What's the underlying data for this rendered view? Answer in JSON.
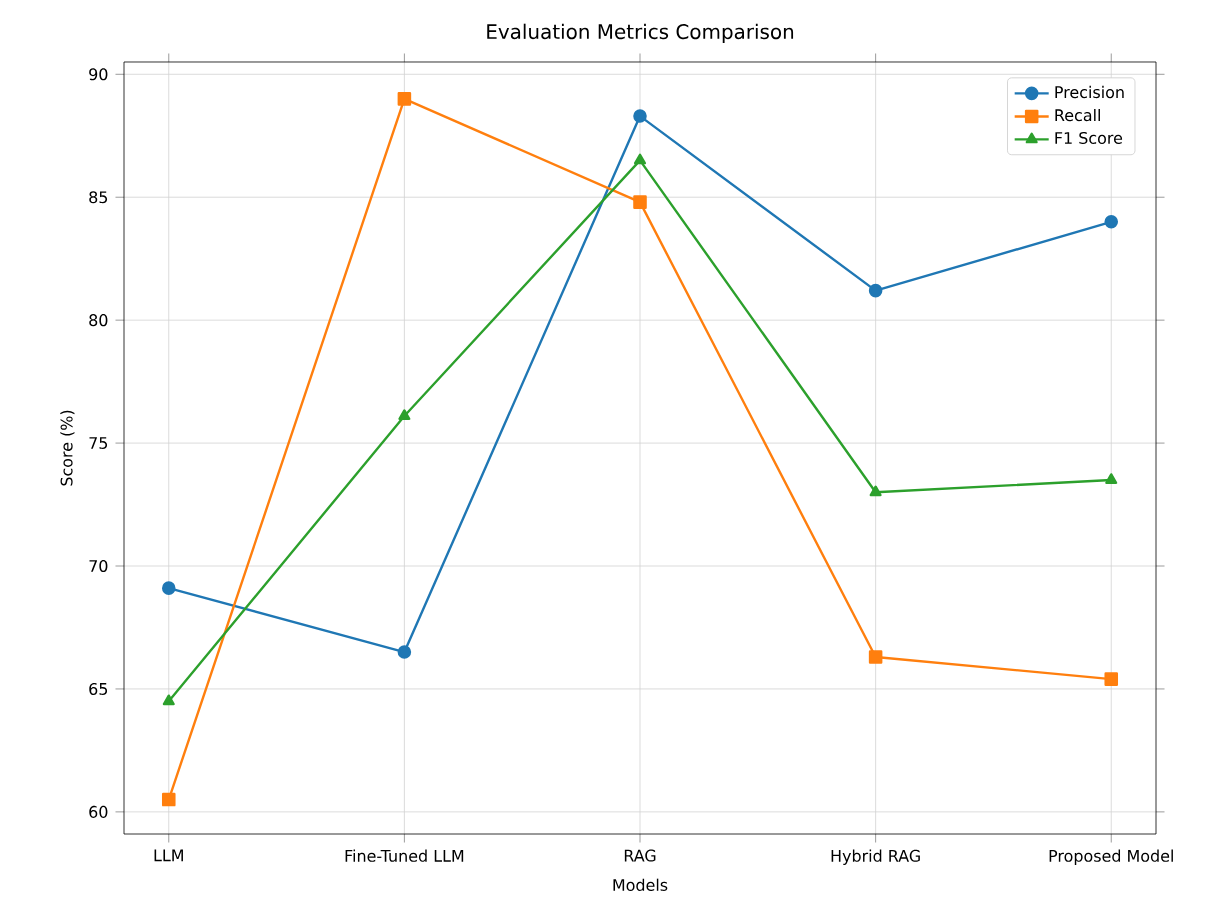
{
  "chart_data": {
    "type": "line",
    "title": "Evaluation Metrics Comparison",
    "xlabel": "Models",
    "ylabel": "Score (%)",
    "categories": [
      "LLM",
      "Fine-Tuned LLM",
      "RAG",
      "Hybrid RAG",
      "Proposed Model"
    ],
    "series": [
      {
        "name": "Precision",
        "color": "#1f77b4",
        "marker": "circle",
        "values": [
          69.1,
          66.5,
          88.3,
          81.2,
          84.0
        ]
      },
      {
        "name": "Recall",
        "color": "#ff7f0e",
        "marker": "square",
        "values": [
          60.5,
          89.0,
          84.8,
          66.3,
          65.4
        ]
      },
      {
        "name": "F1 Score",
        "color": "#2ca02c",
        "marker": "triangle",
        "values": [
          64.5,
          76.1,
          86.5,
          73.0,
          73.5
        ]
      }
    ],
    "ylim": [
      59.1,
      90.5
    ],
    "yticks": [
      60,
      65,
      70,
      75,
      80,
      85,
      90
    ],
    "grid": true,
    "legend": "top right",
    "line_style": "solid"
  }
}
